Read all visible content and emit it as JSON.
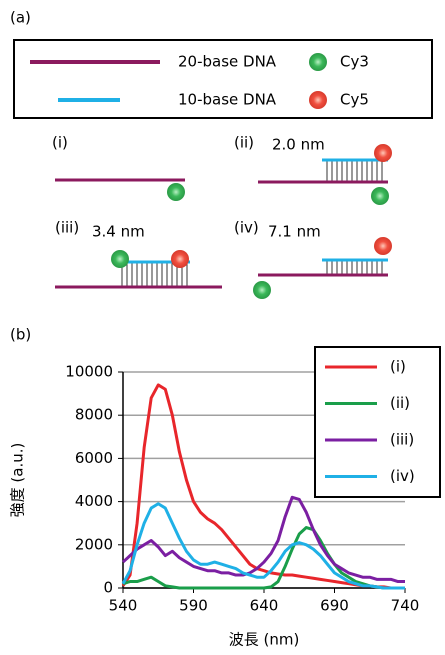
{
  "panels": {
    "a": "(a)",
    "b": "(b)"
  },
  "legend": {
    "items": [
      {
        "label": "20-base DNA",
        "color": "#8b1a5e"
      },
      {
        "label": "10-base DNA",
        "color": "#1fb0e6"
      },
      {
        "label": "Cy3",
        "color": "#3cb85a"
      },
      {
        "label": "Cy5",
        "color": "#f05040"
      }
    ]
  },
  "diagrams": [
    {
      "label": "(i)"
    },
    {
      "label": "(ii)",
      "distance": "2.0 nm"
    },
    {
      "label": "(iii)",
      "distance": "3.4 nm"
    },
    {
      "label": "(iv)",
      "distance": "7.1 nm"
    }
  ],
  "chart_data": {
    "type": "line",
    "xlabel": "波長 (nm)",
    "ylabel": "強度 (a.u.)",
    "x": [
      540,
      545,
      550,
      555,
      560,
      565,
      570,
      575,
      580,
      585,
      590,
      595,
      600,
      605,
      610,
      615,
      620,
      625,
      630,
      635,
      640,
      645,
      650,
      655,
      660,
      665,
      670,
      675,
      680,
      685,
      690,
      695,
      700,
      705,
      710,
      715,
      720,
      725,
      730,
      735,
      740
    ],
    "series": [
      {
        "name": "(i)",
        "color": "#e8262b",
        "values": [
          100,
          600,
          3000,
          6500,
          8800,
          9400,
          9200,
          8000,
          6300,
          5000,
          4000,
          3500,
          3200,
          3000,
          2700,
          2300,
          1900,
          1500,
          1100,
          900,
          800,
          700,
          650,
          600,
          600,
          550,
          500,
          450,
          400,
          350,
          300,
          250,
          200,
          150,
          100,
          100,
          50,
          50,
          0,
          0,
          0
        ]
      },
      {
        "name": "(ii)",
        "color": "#1a9e4a",
        "values": [
          200,
          300,
          300,
          400,
          500,
          300,
          100,
          50,
          0,
          0,
          0,
          0,
          0,
          0,
          0,
          0,
          0,
          0,
          0,
          0,
          0,
          50,
          300,
          1000,
          1800,
          2500,
          2800,
          2700,
          2200,
          1600,
          1100,
          700,
          500,
          300,
          200,
          100,
          50,
          0,
          0,
          0,
          0
        ]
      },
      {
        "name": "(iii)",
        "color": "#7b1fa2",
        "values": [
          1200,
          1500,
          1800,
          2000,
          2200,
          1900,
          1500,
          1700,
          1400,
          1200,
          1000,
          900,
          800,
          800,
          700,
          700,
          600,
          600,
          700,
          900,
          1200,
          1600,
          2200,
          3300,
          4200,
          4100,
          3500,
          2700,
          2000,
          1500,
          1100,
          900,
          700,
          600,
          500,
          500,
          400,
          400,
          400,
          300,
          300
        ]
      },
      {
        "name": "(iv)",
        "color": "#1fb0e6",
        "values": [
          200,
          800,
          2000,
          3000,
          3700,
          3900,
          3700,
          3000,
          2300,
          1700,
          1300,
          1100,
          1100,
          1200,
          1100,
          1000,
          900,
          700,
          600,
          500,
          500,
          800,
          1200,
          1700,
          2000,
          2100,
          2000,
          1800,
          1500,
          1100,
          700,
          500,
          300,
          200,
          100,
          100,
          50,
          0,
          0,
          0,
          0
        ]
      }
    ],
    "xlim": [
      540,
      740
    ],
    "xticks": [
      540,
      590,
      640,
      690,
      740
    ],
    "ylim": [
      0,
      10000
    ],
    "yticks": [
      0,
      2000,
      4000,
      6000,
      8000,
      10000
    ],
    "grid": true,
    "legend": "upper right"
  }
}
